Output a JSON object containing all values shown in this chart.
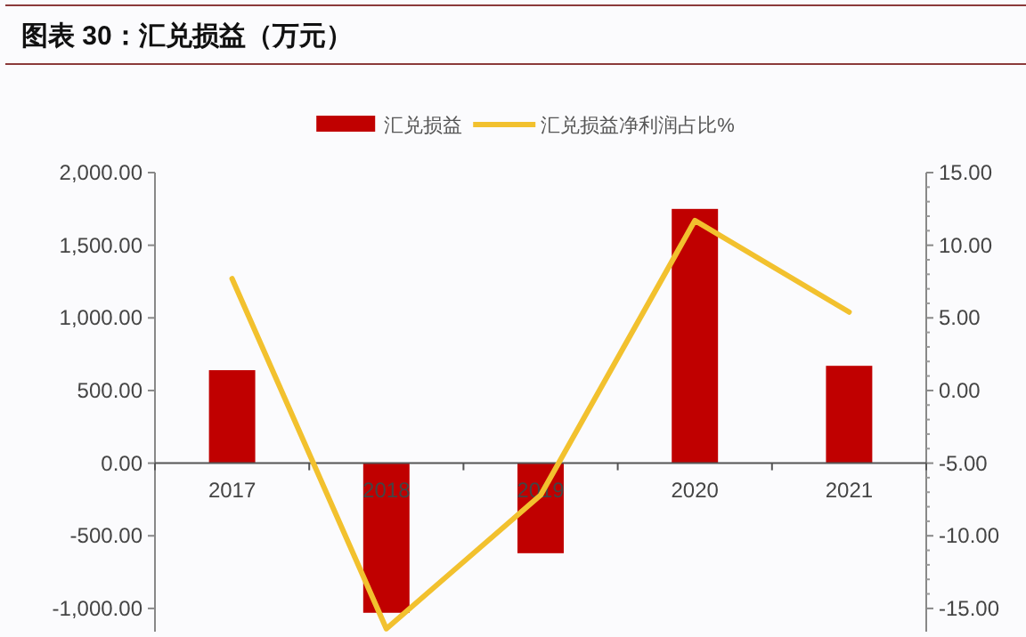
{
  "chart_data": {
    "type": "bar",
    "title": "图表 30：汇兑损益（万元）",
    "categories": [
      "2017",
      "2018",
      "2019",
      "2020",
      "2021"
    ],
    "series": [
      {
        "name": "汇兑损益",
        "color": "#c00000",
        "values": [
          640,
          -1030,
          -620,
          1750,
          670
        ]
      },
      {
        "name": "汇兑损益净利润占比%",
        "type": "line",
        "axis": "y2",
        "color": "#f2c12e",
        "values": [
          7.7,
          -16.4,
          -7.2,
          11.7,
          5.4
        ]
      }
    ],
    "ylim": [
      -1160,
      2000
    ],
    "yticks": [
      {
        "value": -1000,
        "label": "-1,000.00"
      },
      {
        "value": -500,
        "label": "-500.00"
      },
      {
        "value": 0,
        "label": "0.00"
      },
      {
        "value": 500,
        "label": "500.00"
      },
      {
        "value": 1000,
        "label": "1,000.00"
      },
      {
        "value": 1500,
        "label": "1,500.00"
      },
      {
        "value": 2000,
        "label": "2,000.00"
      }
    ],
    "y2lim": [
      -16.6,
      15
    ],
    "y2ticks": [
      {
        "value": -15,
        "label": "-15.00"
      },
      {
        "value": -10,
        "label": "-10.00"
      },
      {
        "value": -5,
        "label": "-5.00"
      },
      {
        "value": 0,
        "label": "0.00"
      },
      {
        "value": 5,
        "label": "5.00"
      },
      {
        "value": 10,
        "label": "10.00"
      },
      {
        "value": 15,
        "label": "15.00"
      }
    ],
    "legend": "top"
  }
}
